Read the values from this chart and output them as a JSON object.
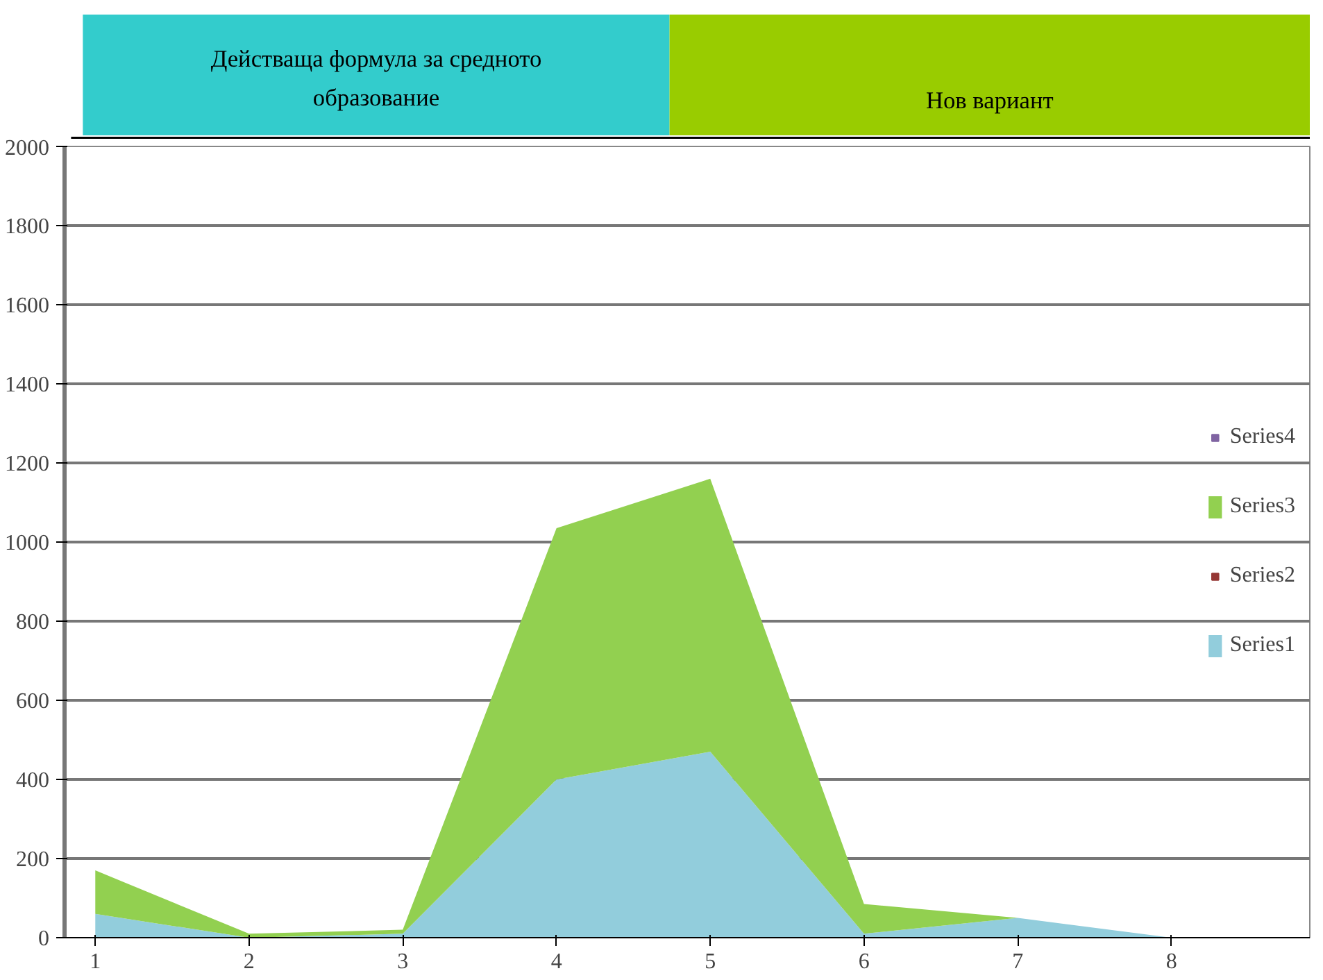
{
  "chart_data": {
    "type": "area",
    "stacked": true,
    "annotations": [
      "Действаща формула за средното образование",
      "Нов вариант"
    ],
    "categories": [
      "1",
      "2",
      "3",
      "4",
      "5",
      "6",
      "7",
      "8"
    ],
    "series": [
      {
        "name": "Series1",
        "color": "#92cddc",
        "values": [
          60,
          0,
          10,
          400,
          470,
          10,
          50,
          0
        ]
      },
      {
        "name": "Series2",
        "color": "#953735",
        "values": [
          null,
          null,
          null,
          null,
          null,
          null,
          null,
          null
        ]
      },
      {
        "name": "Series3",
        "color": "#92d050",
        "values": [
          110,
          10,
          10,
          635,
          690,
          75,
          0,
          0
        ]
      },
      {
        "name": "Series4",
        "color": "#8064a2",
        "values": [
          null,
          null,
          null,
          null,
          null,
          null,
          null,
          null
        ]
      }
    ],
    "ylim": [
      0,
      2000
    ],
    "yticks": [
      0,
      200,
      400,
      600,
      800,
      1000,
      1200,
      1400,
      1600,
      1800,
      2000
    ],
    "grid": "y",
    "legend": "right"
  }
}
